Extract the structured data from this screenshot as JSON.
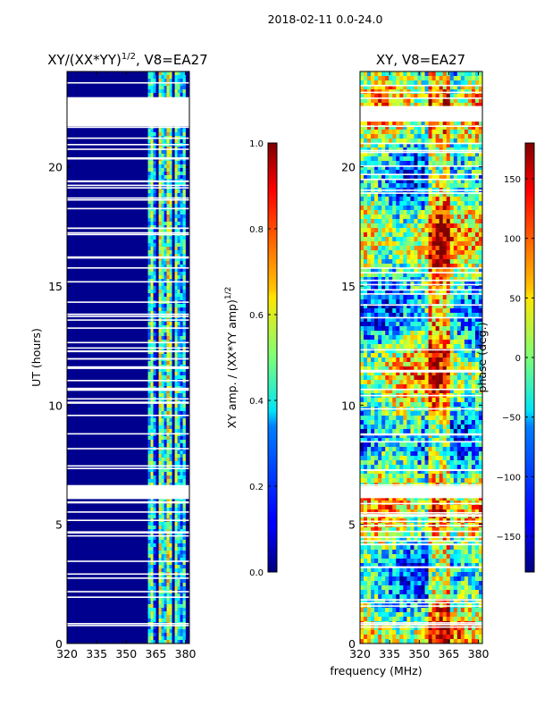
{
  "suptitle": "2018-02-11 0.0-24.0",
  "colors": {
    "background": "#00008f",
    "gap": "#ffffff",
    "frame": "#000000"
  },
  "chart_data": [
    {
      "type": "heatmap",
      "title_main": "XY/(XX*YY)",
      "title_sup": "1/2",
      "title_suffix": ", V8=EA27",
      "xlabel": "",
      "ylabel": "UT (hours)",
      "xlim": [
        320,
        382
      ],
      "ylim": [
        0,
        24
      ],
      "xticks": [
        320,
        335,
        350,
        365,
        380
      ],
      "yticks": [
        0,
        5,
        10,
        15,
        20
      ],
      "colorbar": {
        "label_main": "XY amp. / (XX*YY amp)",
        "label_sup": "1/2",
        "range": [
          0.0,
          1.0
        ],
        "ticks": [
          "0.0",
          "0.2",
          "0.4",
          "0.6",
          "0.8",
          "1.0"
        ],
        "tick_values": [
          0.0,
          0.2,
          0.4,
          0.6,
          0.8,
          1.0
        ],
        "colormap": "jet"
      },
      "flagged_time_ranges_hours": [
        [
          21.7,
          22.9
        ],
        [
          6.1,
          6.6
        ]
      ],
      "active_band_mhz": [
        361,
        380
      ]
    },
    {
      "type": "heatmap",
      "title": "XY, V8=EA27",
      "xlabel": "frequency (MHz)",
      "ylabel": "",
      "xlim": [
        320,
        382
      ],
      "ylim": [
        0,
        24
      ],
      "xticks": [
        320,
        335,
        350,
        365,
        380
      ],
      "yticks": [
        0,
        5,
        10,
        15,
        20
      ],
      "colorbar": {
        "label": "phase (deg.)",
        "range": [
          -180,
          180
        ],
        "ticks": [
          "−150",
          "−100",
          "−50",
          "0",
          "50",
          "100",
          "150"
        ],
        "tick_values": [
          -150,
          -100,
          -50,
          0,
          50,
          100,
          150
        ],
        "colormap": "jet"
      },
      "flagged_time_ranges_hours": [
        [
          21.9,
          22.5
        ],
        [
          6.1,
          6.6
        ]
      ]
    }
  ]
}
